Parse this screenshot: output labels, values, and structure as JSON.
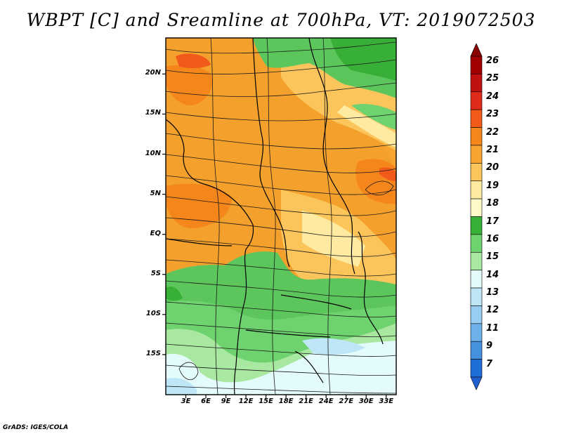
{
  "title": "WBPT [C] and Sreamline at 700hPa, VT: 2019072503",
  "credit": "GrADS: IGES/COLA",
  "map": {
    "variable": "WBPT [C]",
    "overlay": "Streamline",
    "level": "700hPa",
    "valid_time": "2019072503",
    "lat_labels": [
      "20N",
      "15N",
      "10N",
      "5N",
      "EQ",
      "5S",
      "10S",
      "15S"
    ],
    "lat_values": [
      20,
      15,
      10,
      5,
      0,
      -5,
      -10,
      -15
    ],
    "lon_labels": [
      "3E",
      "6E",
      "9E",
      "12E",
      "15E",
      "18E",
      "21E",
      "24E",
      "27E",
      "30E",
      "33E"
    ],
    "lon_values": [
      3,
      6,
      9,
      12,
      15,
      18,
      21,
      24,
      27,
      30,
      33
    ],
    "lat_range": [
      -20,
      24.5
    ],
    "lon_range": [
      0,
      34.5
    ]
  },
  "colorbar": {
    "labels": [
      "26",
      "25",
      "24",
      "23",
      "22",
      "21",
      "20",
      "19",
      "18",
      "17",
      "16",
      "15",
      "14",
      "13",
      "12",
      "11",
      "9",
      "7"
    ],
    "colors": [
      "#a00000",
      "#c01010",
      "#e02a1a",
      "#f25a1a",
      "#f4861c",
      "#f7a530",
      "#fcc55b",
      "#feeaa0",
      "#fff9c8",
      "#38b038",
      "#6ed26e",
      "#a8e8a0",
      "#e4fbfb",
      "#bfe6f7",
      "#96cdf0",
      "#6eb0ea",
      "#4690e0",
      "#1f6fd8"
    ]
  }
}
